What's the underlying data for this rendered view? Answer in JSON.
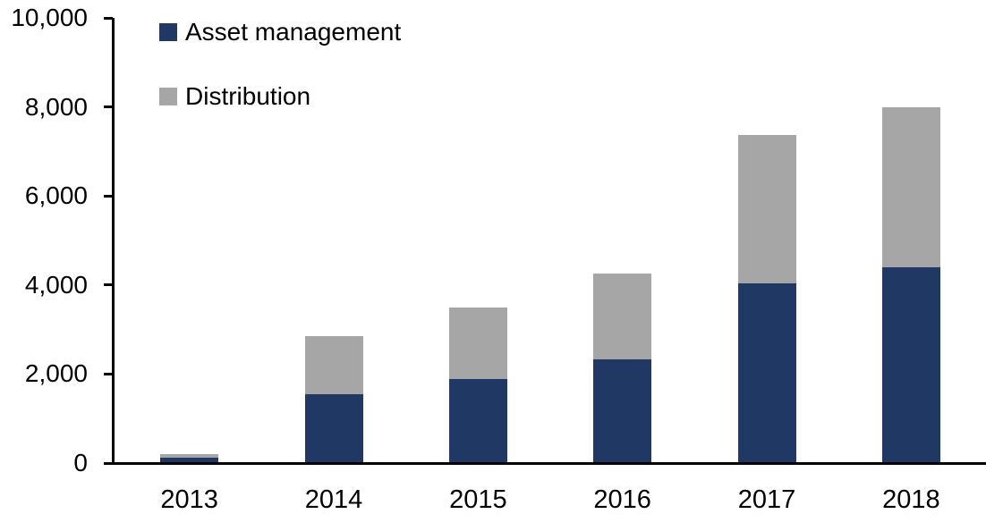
{
  "chart_data": {
    "type": "bar",
    "stacked": true,
    "title": "",
    "xlabel": "",
    "ylabel": "",
    "categories": [
      "2013",
      "2014",
      "2015",
      "2016",
      "2017",
      "2018"
    ],
    "series": [
      {
        "name": "Asset management",
        "color": "#1f3864",
        "values": [
          120,
          1550,
          1890,
          2320,
          4030,
          4400
        ]
      },
      {
        "name": "Distribution",
        "color": "#a6a6a6",
        "values": [
          80,
          1310,
          1610,
          1930,
          3340,
          3600
        ]
      }
    ],
    "totals": [
      200,
      2860,
      3500,
      4250,
      7370,
      8000
    ],
    "ylim": [
      0,
      10000
    ],
    "yticks": [
      {
        "label": "0",
        "value": 0
      },
      {
        "label": "2,000",
        "value": 2000
      },
      {
        "label": "4,000",
        "value": 4000
      },
      {
        "label": "6,000",
        "value": 6000
      },
      {
        "label": "8,000",
        "value": 8000
      },
      {
        "label": "10,000",
        "value": 10000
      }
    ],
    "grid": false,
    "legend_position": "top-left",
    "axis_color": "#000000",
    "background_color": "#ffffff"
  }
}
